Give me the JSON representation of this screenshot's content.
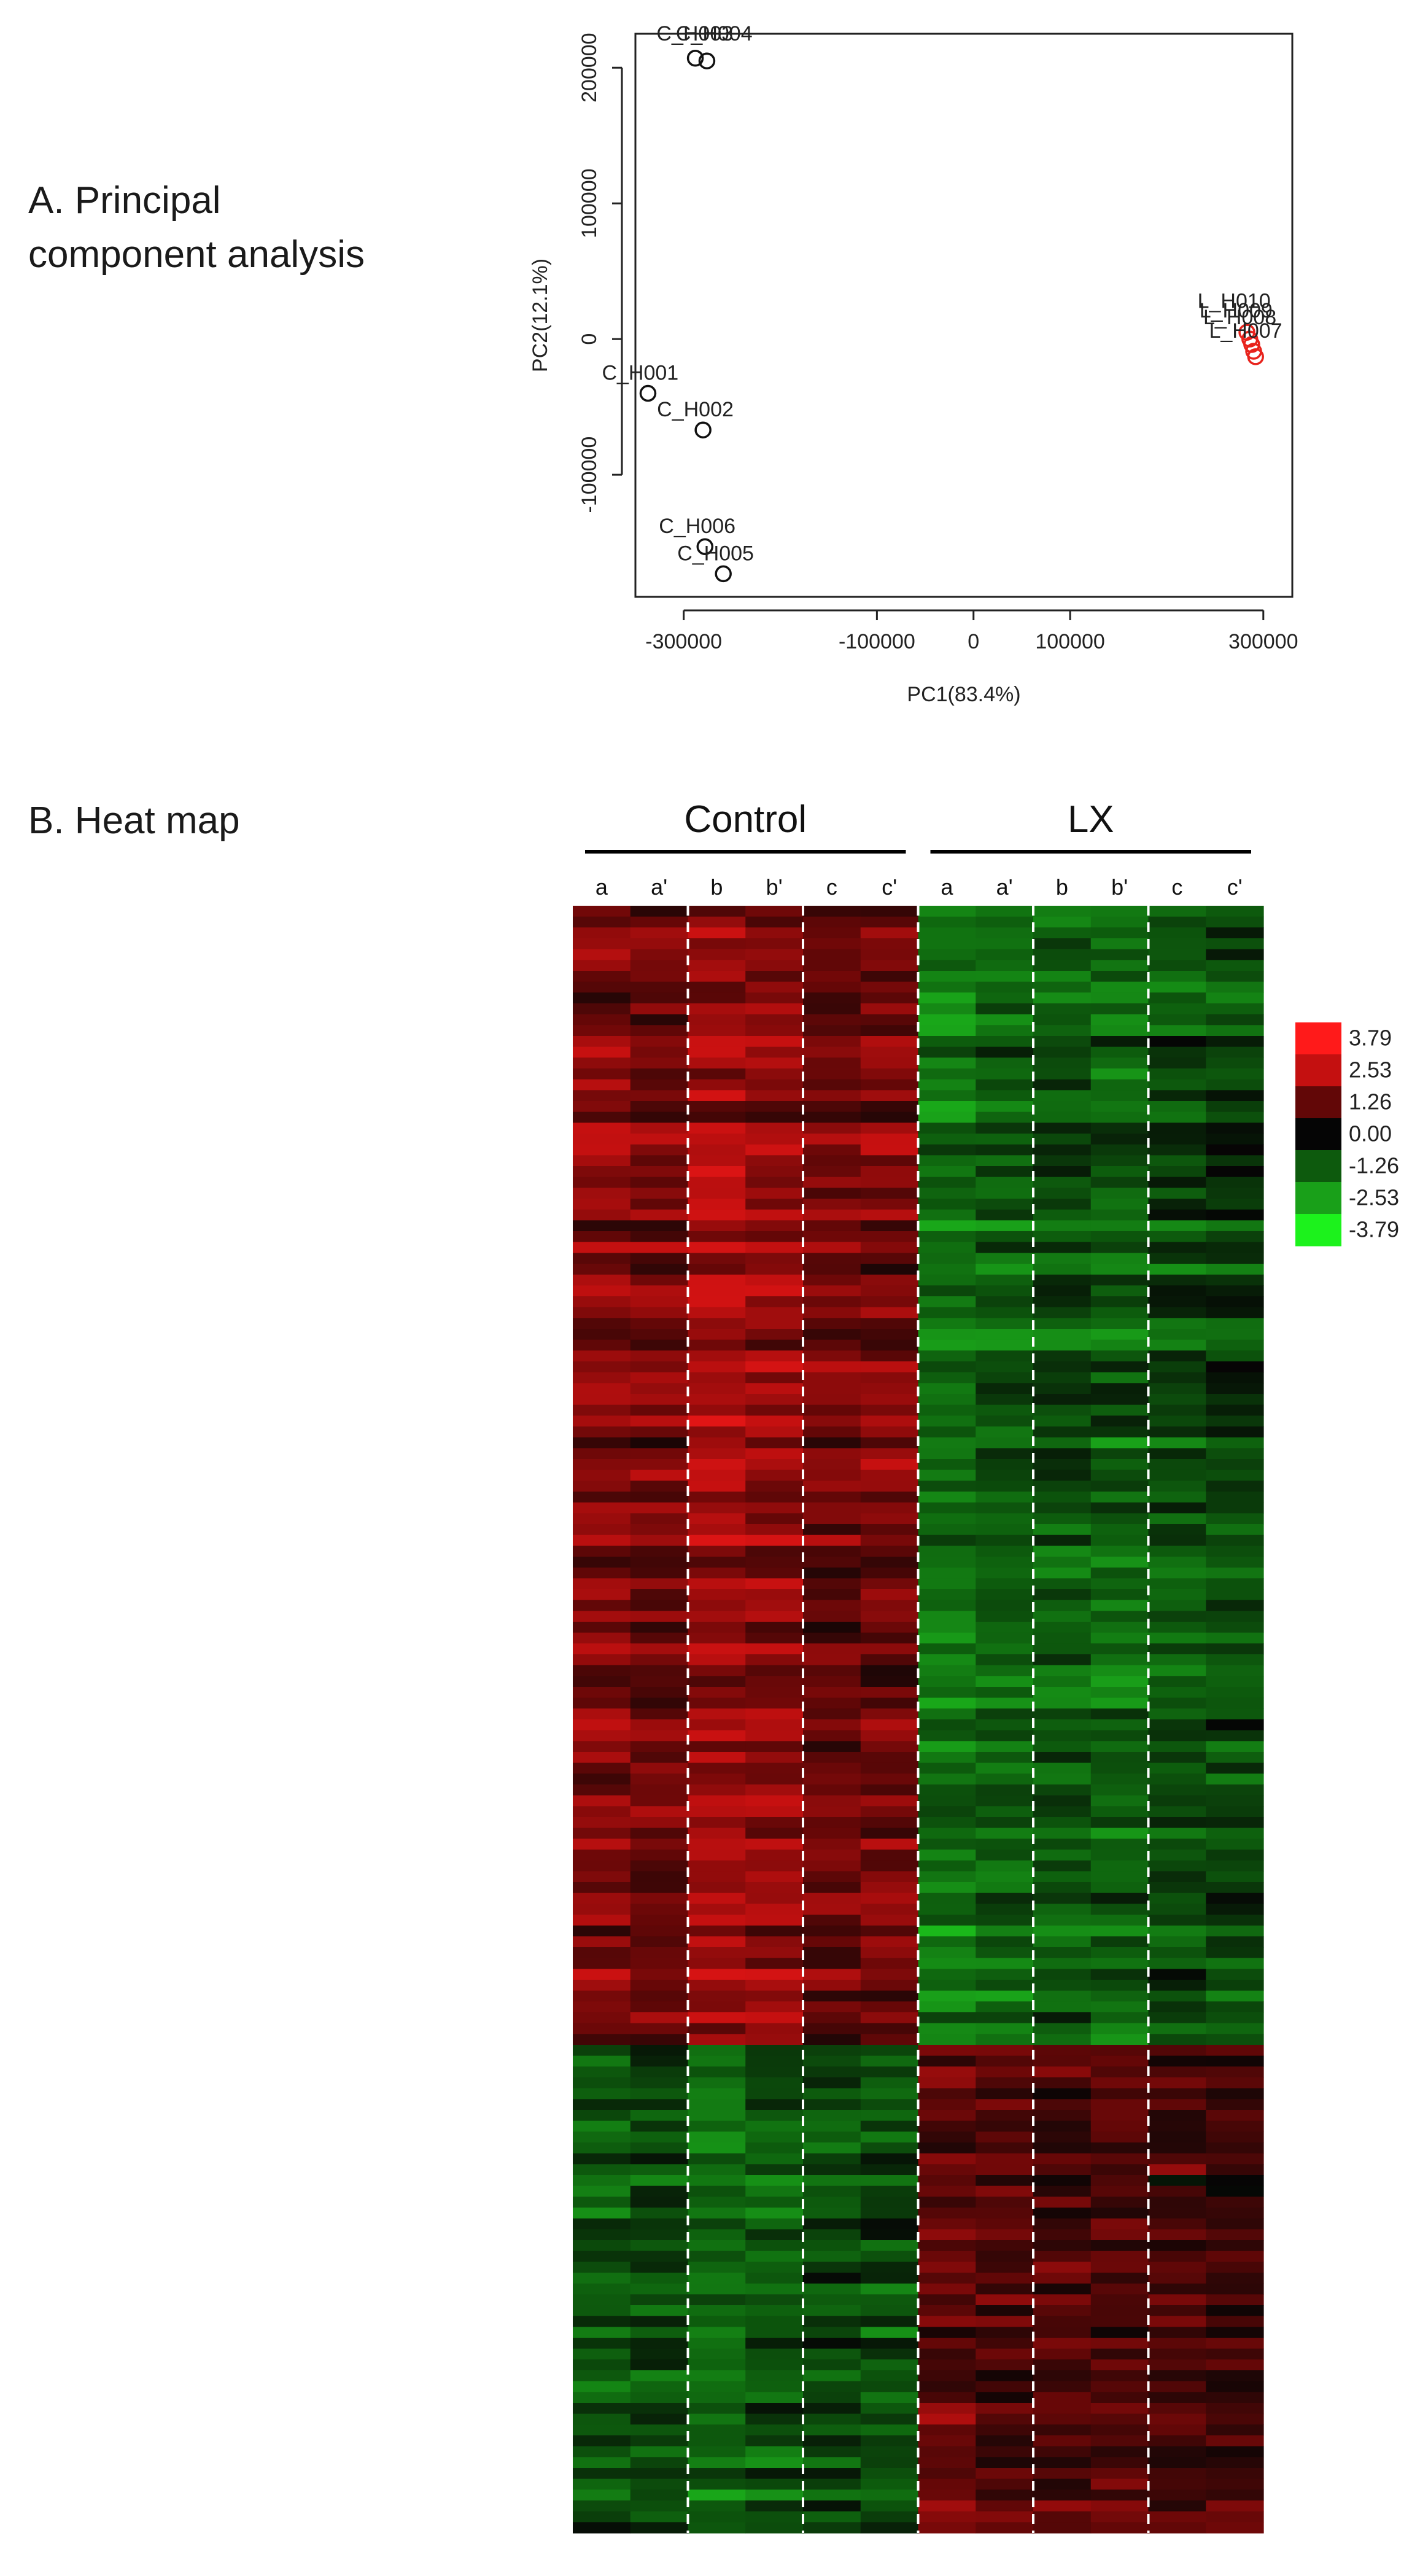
{
  "panels": {
    "a_label": "A.   Principal\ncomponent analysis",
    "b_label": "B. Heat map"
  },
  "chart_data": [
    {
      "type": "scatter",
      "xlabel": "PC1(83.4%)",
      "ylabel": "PC2(12.1%)",
      "xlim": [
        -350000,
        330000
      ],
      "ylim": [
        -190000,
        225000
      ],
      "x_ticks": [
        -300000,
        -100000,
        0,
        100000,
        300000
      ],
      "y_ticks": [
        -100000,
        0,
        100000,
        200000
      ],
      "x_tick_labels": [
        "-300000",
        "-100000",
        "0",
        "100000",
        "300000"
      ],
      "y_tick_labels": [
        "-100000",
        "0",
        "100000",
        "200000"
      ],
      "series": [
        {
          "color": "#111111",
          "points": [
            {
              "x": -288000,
              "y": 207000,
              "label": ""
            },
            {
              "x": -276000,
              "y": 205000,
              "label": ""
            },
            {
              "x": -337000,
              "y": -40000,
              "label": "C_H001"
            },
            {
              "x": -280000,
              "y": -67000,
              "label": "C_H002"
            },
            {
              "x": -278000,
              "y": -153000,
              "label": "C_H006"
            },
            {
              "x": -259000,
              "y": -173000,
              "label": "C_H005"
            }
          ]
        },
        {
          "color": "#e8231c",
          "points": [
            {
              "x": 283000,
              "y": 5000
            },
            {
              "x": 286000,
              "y": 0
            },
            {
              "x": 288000,
              "y": -4000
            },
            {
              "x": 290000,
              "y": -9000
            },
            {
              "x": 292000,
              "y": -13000
            }
          ]
        }
      ],
      "overlap_labels": [
        {
          "text": "C_H003",
          "x": -290000,
          "y": 220000
        },
        {
          "text": "C_H004",
          "x": -270000,
          "y": 220000
        },
        {
          "text": "L_H010",
          "x": 270000,
          "y": 23000
        },
        {
          "text": "L_H009",
          "x": 272000,
          "y": 16000
        },
        {
          "text": "L_H008",
          "x": 276000,
          "y": 11000
        },
        {
          "text": "L_H007",
          "x": 282000,
          "y": 1000
        }
      ]
    },
    {
      "type": "heatmap",
      "groups": [
        {
          "name": "Control",
          "columns": [
            "a",
            "a'",
            "b",
            "b'",
            "c",
            "c'"
          ]
        },
        {
          "name": "LX",
          "columns": [
            "a",
            "a'",
            "b",
            "b'",
            "c",
            "c'"
          ]
        }
      ],
      "rows": 150,
      "top_block_rows": 105,
      "colorbar": {
        "values": [
          "3.79",
          "2.53",
          "1.26",
          "0.00",
          "-1.26",
          "-2.53",
          "-3.79"
        ],
        "colors": [
          "#ff1a1a",
          "#c41010",
          "#620707",
          "#050505",
          "#0d5a0d",
          "#19a019",
          "#1cf21c"
        ]
      }
    }
  ]
}
